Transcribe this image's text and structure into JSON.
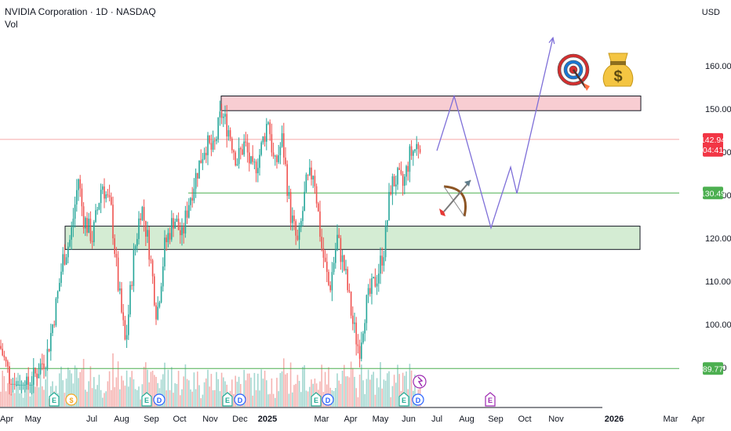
{
  "header": {
    "symbol_line": "NVIDIA Corporation · 1D · NASDAQ",
    "volume_label": "Vol",
    "currency": "USD"
  },
  "chart_data": {
    "type": "candlestick",
    "title": "NVIDIA Corporation · 1D · NASDAQ",
    "ylim": [
      82,
      168
    ],
    "y_ticks": [
      "160.00",
      "150.00",
      "140.00",
      "130.00",
      "120.00",
      "110.00",
      "100.00",
      "90.00"
    ],
    "y_tick_values": [
      160,
      150,
      140,
      130,
      120,
      110,
      100,
      90
    ],
    "x_ticks": [
      "Apr",
      "May",
      "Jul",
      "Aug",
      "Sep",
      "Oct",
      "Nov",
      "Dec",
      "2025",
      "Mar",
      "Apr",
      "May",
      "Jun",
      "Jul",
      "Aug",
      "Sep",
      "Oct",
      "Nov",
      "2026",
      "Mar",
      "Apr"
    ],
    "x_tick_index": [
      0,
      42,
      117,
      155,
      193,
      229,
      268,
      306,
      341,
      410,
      447,
      485,
      521,
      557,
      595,
      632,
      669,
      709,
      783,
      855,
      890
    ],
    "last_price": {
      "value": 142.94,
      "label": "142.94",
      "countdown": "04:41",
      "color": "#f23645"
    },
    "levels": [
      {
        "value": 130.49,
        "label": "130.49",
        "color": "#4caf50"
      },
      {
        "value": 89.77,
        "label": "89.77",
        "color": "#4caf50"
      }
    ],
    "zones": [
      {
        "type": "resistance",
        "from": 149.6,
        "to": 153.0,
        "color": "#f8cdd2"
      },
      {
        "type": "support",
        "from": 117.4,
        "to": 122.8,
        "color": "#d4ecd3"
      }
    ],
    "path": [
      {
        "x": 557,
        "y": 140.3
      },
      {
        "x": 579,
        "y": 153.0
      },
      {
        "x": 626,
        "y": 122.4
      },
      {
        "x": 651,
        "y": 136.5
      },
      {
        "x": 659,
        "y": 130.4
      },
      {
        "x": 705,
        "y": 166.5
      }
    ],
    "events": [
      {
        "letter": "E",
        "x": 69,
        "color": "#22ab94"
      },
      {
        "letter": "$",
        "x": 91,
        "color": "#f5a623"
      },
      {
        "letter": "E",
        "x": 187,
        "color": "#22ab94"
      },
      {
        "letter": "D",
        "x": 203,
        "color": "#2962ff"
      },
      {
        "letter": "E",
        "x": 290,
        "color": "#22ab94"
      },
      {
        "letter": "D",
        "x": 306,
        "color": "#2962ff"
      },
      {
        "letter": "E",
        "x": 403,
        "color": "#22ab94"
      },
      {
        "letter": "D",
        "x": 418,
        "color": "#2962ff"
      },
      {
        "letter": "E",
        "x": 515,
        "color": "#22ab94"
      },
      {
        "letter": "D",
        "x": 533,
        "color": "#2962ff"
      },
      {
        "letter": "E",
        "x": 625,
        "color": "#9c27b0"
      }
    ],
    "icons": [
      "target-icon",
      "money-bag-icon",
      "bow-arrow-icon",
      "split-event-icon"
    ],
    "candle_anchors": [
      [
        0,
        95
      ],
      [
        12,
        88
      ],
      [
        25,
        84
      ],
      [
        38,
        86
      ],
      [
        50,
        90
      ],
      [
        60,
        93
      ],
      [
        72,
        105
      ],
      [
        80,
        115
      ],
      [
        90,
        120
      ],
      [
        100,
        134
      ],
      [
        106,
        125
      ],
      [
        118,
        120
      ],
      [
        130,
        133
      ],
      [
        142,
        126
      ],
      [
        150,
        110
      ],
      [
        160,
        95
      ],
      [
        170,
        115
      ],
      [
        180,
        128
      ],
      [
        190,
        118
      ],
      [
        200,
        102
      ],
      [
        210,
        118
      ],
      [
        222,
        125
      ],
      [
        232,
        120
      ],
      [
        240,
        128
      ],
      [
        252,
        136
      ],
      [
        262,
        142
      ],
      [
        272,
        140
      ],
      [
        282,
        149
      ],
      [
        292,
        145
      ],
      [
        302,
        138
      ],
      [
        312,
        142
      ],
      [
        322,
        135
      ],
      [
        332,
        140
      ],
      [
        342,
        148
      ],
      [
        350,
        136
      ],
      [
        360,
        143
      ],
      [
        370,
        126
      ],
      [
        380,
        118
      ],
      [
        390,
        132
      ],
      [
        400,
        136
      ],
      [
        410,
        118
      ],
      [
        420,
        108
      ],
      [
        430,
        120
      ],
      [
        440,
        112
      ],
      [
        450,
        100
      ],
      [
        458,
        94
      ],
      [
        466,
        104
      ],
      [
        474,
        108
      ],
      [
        482,
        112
      ],
      [
        490,
        118
      ],
      [
        498,
        132
      ],
      [
        506,
        134
      ],
      [
        514,
        132
      ],
      [
        522,
        139
      ],
      [
        530,
        141
      ],
      [
        537,
        142.94
      ]
    ],
    "volume_seed": 7
  }
}
